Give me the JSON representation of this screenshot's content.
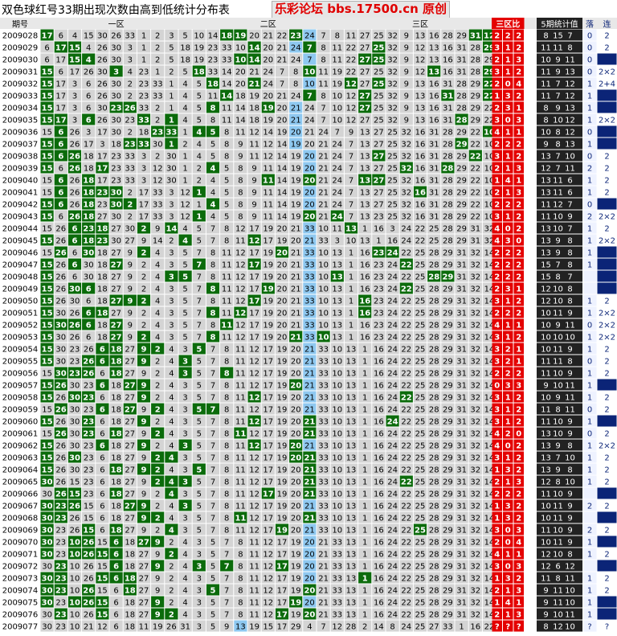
{
  "title": "双色球红号33期出现次数由高到低统计分布表",
  "site": "乐彩论坛 bbs.17500.cn 原创",
  "headers": {
    "issue": "期号",
    "zone1": "一区",
    "zone2": "二区",
    "zone3": "三区",
    "ratio": "三区比",
    "stat5": "5期统计值",
    "drop": "落",
    "consec": "连"
  },
  "colors": {
    "hit": "#0b6b0b",
    "cell_bg": "#d4d4d4",
    "blue": "#0b2477",
    "highlight": "#8ec8f0",
    "ratio_red": "#e40000",
    "ratio_dark": "#222222",
    "grid_line": "#ffffff"
  },
  "chart_data": {
    "type": "table",
    "columns": 33,
    "zones": [
      [
        1,
        11
      ],
      [
        12,
        22
      ],
      [
        23,
        33
      ]
    ],
    "rows": [
      {
        "issue": "2009028",
        "drop": "0",
        "consec": "2"
      },
      {
        "issue": "2009029",
        "drop": "0",
        "consec": "2"
      },
      {
        "issue": "2009030",
        "drop": "0",
        "consec": ""
      },
      {
        "issue": "2009031",
        "drop": "0",
        "consec": "2×2"
      },
      {
        "issue": "2009032",
        "drop": "1",
        "consec": "2+4"
      },
      {
        "issue": "2009033",
        "drop": "1",
        "consec": ""
      },
      {
        "issue": "2009034",
        "drop": "1",
        "consec": ""
      },
      {
        "issue": "2009035",
        "drop": "1",
        "consec": "2×2"
      },
      {
        "issue": "2009036",
        "drop": "0",
        "consec": ""
      },
      {
        "issue": "2009037",
        "drop": "1",
        "consec": ""
      },
      {
        "issue": "2009038",
        "drop": "0",
        "consec": "2"
      },
      {
        "issue": "2009039",
        "drop": "2",
        "consec": "2"
      },
      {
        "issue": "2009040",
        "drop": "1",
        "consec": "2"
      },
      {
        "issue": "2009041",
        "drop": "1",
        "consec": "2"
      },
      {
        "issue": "2009042",
        "drop": "0",
        "consec": ""
      },
      {
        "issue": "2009043",
        "drop": "2",
        "consec": "2×2"
      },
      {
        "issue": "2009044",
        "drop": "1",
        "consec": "2"
      },
      {
        "issue": "2009045",
        "drop": "1",
        "consec": "2×2"
      },
      {
        "issue": "2009046",
        "drop": "1",
        "consec": ""
      },
      {
        "issue": "2009047",
        "drop": "1",
        "consec": ""
      },
      {
        "issue": "2009048",
        "drop": "",
        "consec": ""
      },
      {
        "issue": "2009049",
        "drop": "",
        "consec": ""
      },
      {
        "issue": "2009050",
        "drop": "1",
        "consec": "2"
      },
      {
        "issue": "2009051",
        "drop": "1",
        "consec": "2×2"
      },
      {
        "issue": "2009052",
        "drop": "0",
        "consec": "2×2"
      },
      {
        "issue": "2009053",
        "drop": "1",
        "consec": "2×2"
      },
      {
        "issue": "2009054",
        "drop": "1",
        "consec": "2"
      },
      {
        "issue": "2009055",
        "drop": "0",
        "consec": "2"
      },
      {
        "issue": "2009056",
        "drop": "1",
        "consec": "2"
      },
      {
        "issue": "2009057",
        "drop": "1",
        "consec": ""
      },
      {
        "issue": "2009058",
        "drop": "1",
        "consec": "2"
      },
      {
        "issue": "2009059",
        "drop": "0",
        "consec": "2"
      },
      {
        "issue": "2009060",
        "drop": "1",
        "consec": ""
      },
      {
        "issue": "2009061",
        "drop": "0",
        "consec": "2"
      },
      {
        "issue": "2009062",
        "drop": "1",
        "consec": "2×2"
      },
      {
        "issue": "2009063",
        "drop": "1",
        "consec": "2"
      },
      {
        "issue": "2009064",
        "drop": "1",
        "consec": "2"
      },
      {
        "issue": "2009065",
        "drop": "1",
        "consec": "2"
      },
      {
        "issue": "2009066",
        "drop": "",
        "consec": ""
      },
      {
        "issue": "2009067",
        "drop": "2",
        "consec": "2"
      },
      {
        "issue": "2009068",
        "drop": "",
        "consec": ""
      },
      {
        "issue": "2009069",
        "drop": "2",
        "consec": "2"
      },
      {
        "issue": "2009070",
        "drop": "1",
        "consec": ""
      },
      {
        "issue": "2009071",
        "drop": "1",
        "consec": "2"
      },
      {
        "issue": "2009072",
        "drop": "",
        "consec": ""
      },
      {
        "issue": "2009073",
        "drop": "1",
        "consec": "2"
      },
      {
        "issue": "2009074",
        "drop": "1",
        "consec": "2"
      },
      {
        "issue": "2009075",
        "drop": "1",
        "consec": ""
      },
      {
        "issue": "2009076",
        "drop": "1",
        "consec": ""
      },
      {
        "issue": "2009077",
        "drop": "?",
        "consec": "?"
      }
    ],
    "numbers": [
      "17 6 4 15 30 26 33 1 2 3 5 10 14 18 19 20 21 22 23 24 7 8 11 27 25 32 9 13 16 28 29 31 12",
      "6 17 15 4 26 30 3 1 2 5 18 19 23 33 10 14 20 21 24 7 8 11 22 27 25 32 9 12 13 16 31 28 29",
      "6 17 15 4 26 30 3 1 2 5 18 19 23 33 10 14 20 21 24 7 8 11 22 27 25 32 9 12 13 16 31 28 29",
      "15 6 17 26 30 3 4 23 1 2 5 18 33 14 20 21 24 7 8 10 11 19 22 27 25 32 9 12 13 16 31 28 29",
      "15 17 3 6 26 30 2 23 33 1 4 5 18 14 20 21 24 7 8 10 11 19 12 27 25 32 9 13 16 31 28 29 22",
      "15 17 3 6 26 30 2 23 33 1 4 5 11 14 18 19 20 21 24 7 8 10 12 27 25 32 9 13 16 31 28 29 22",
      "15 17 3 6 30 23 26 33 2 1 4 5 8 11 14 18 19 20 21 24 7 10 12 27 25 32 9 13 16 31 28 29 22",
      "15 17 3 6 26 30 23 33 2 1 4 5 8 11 14 18 19 20 21 24 7 10 12 27 25 32 9 13 16 31 28 29 22",
      "15 6 26 3 17 30 2 18 23 33 1 4 5 8 11 12 14 19 20 21 24 7 9 13 27 25 32 16 31 28 29 22 10",
      "15 6 26 17 3 18 23 33 30 1 2 4 5 8 9 11 12 14 19 20 21 24 7 13 27 25 32 16 31 28 29 22 10",
      "15 6 26 18 17 23 33 3 2 30 1 4 5 8 9 11 12 14 19 20 21 24 7 13 27 25 32 16 31 28 29 22 10",
      "15 6 26 18 17 23 33 3 12 30 1 2 4 5 8 9 11 14 19 20 21 24 7 13 27 25 32 16 31 28 29 22 10",
      "15 6 26 18 17 23 33 3 12 30 1 2 4 5 8 9 11 14 19 20 21 24 7 13 27 25 32 16 31 28 29 22 10",
      "15 6 26 18 23 30 2 17 33 3 12 1 4 5 8 9 11 14 19 20 21 24 7 13 27 25 32 16 31 28 29 22 10",
      "15 6 26 18 23 30 2 17 33 3 12 1 4 5 8 9 11 14 19 20 21 24 7 13 27 25 32 16 31 28 29 22 10",
      "15 6 26 18 27 30 2 17 33 3 12 1 4 5 8 9 11 14 19 20 21 24 7 13 23 25 32 16 31 28 29 22 10",
      "15 26 6 23 18 27 30 2 9 14 4 5 7 8 12 17 19 20 21 33 10 11 13 1 16 3 24 22 25 28 29 31 32",
      "15 26 6 18 23 30 27 9 14 2 4 5 7 8 11 12 17 19 20 21 33 3 10 13 1 16 24 22 25 28 29 31 32",
      "15 26 6 30 18 27 9 2 4 3 5 7 8 11 12 17 19 20 21 33 10 13 1 16 23 24 22 25 28 29 31 32 14",
      "15 26 6 30 18 27 9 2 4 3 5 7 8 11 12 17 19 20 21 33 10 13 1 16 23 24 22 25 28 29 31 32 14",
      "15 26 6 30 18 27 9 2 4 3 5 7 8 11 12 17 19 20 21 33 10 13 1 16 23 24 22 25 28 29 31 32 14",
      "15 26 30 6 18 27 9 2 4 3 5 7 8 11 12 17 19 20 21 33 10 13 1 16 23 24 22 25 28 29 31 32 14",
      "15 26 30 6 18 27 9 2 4 3 5 7 8 11 12 17 19 20 21 33 10 13 1 16 23 24 22 25 28 29 31 32 14",
      "15 30 26 6 18 27 9 2 4 3 5 7 8 11 12 17 19 20 21 33 10 13 1 16 23 24 22 25 28 29 31 32 14",
      "15 30 26 6 18 27 9 2 4 3 5 7 8 11 12 17 19 20 21 33 10 13 1 16 23 24 22 25 28 29 31 32 14",
      "15 30 26 6 18 27 9 2 4 3 5 7 8 11 12 17 19 20 21 33 10 13 1 16 23 24 22 25 28 29 31 32 14",
      "15 30 23 26 6 18 27 9 2 4 3 5 7 8 11 12 17 19 20 21 33 10 13 1 16 24 22 25 28 29 31 32 14",
      "15 30 23 26 6 18 27 9 2 4 3 5 7 8 11 12 17 19 20 21 33 10 13 1 16 24 22 25 28 29 31 32 14",
      "15 30 23 26 6 18 27 9 2 4 3 5 7 8 11 12 17 19 20 21 33 10 13 1 16 24 22 25 28 29 31 32 14",
      "15 26 30 23 6 18 27 9 2 4 3 5 7 8 11 12 17 19 20 21 33 10 13 1 16 24 22 25 28 29 31 32 14",
      "15 26 30 23 6 18 27 9 2 4 3 5 7 8 11 12 17 19 20 21 33 10 13 1 16 24 22 25 28 29 31 32 14",
      "15 26 30 23 6 18 27 9 2 4 3 5 7 8 11 12 17 19 20 21 33 10 13 1 16 24 22 25 28 29 31 32 14",
      "15 26 30 23 6 18 27 9 2 4 3 5 7 8 11 12 17 19 20 21 33 10 13 1 16 24 22 25 28 29 31 32 14",
      "15 26 30 23 6 18 27 9 2 4 3 5 7 8 11 12 17 19 20 21 33 10 13 1 16 24 22 25 28 29 31 32 14",
      "15 26 30 23 6 18 27 9 2 4 3 5 7 8 11 12 17 19 20 21 33 10 13 1 16 24 22 25 28 29 31 32 14",
      "15 26 30 23 6 18 27 9 2 4 3 5 7 8 11 12 17 19 20 21 33 10 13 1 16 24 22 25 28 29 31 32 14",
      "15 26 30 23 6 18 27 9 2 4 3 5 7 8 11 12 17 19 20 21 33 10 13 1 16 24 22 25 28 29 31 32 14",
      "30 26 15 23 6 18 27 9 2 4 3 5 7 8 11 12 17 19 20 21 33 10 13 1 16 24 22 25 28 29 31 32 14",
      "30 26 15 23 6 18 27 9 2 4 3 5 7 8 11 12 17 19 20 21 33 10 13 1 16 24 22 25 28 29 31 32 14",
      "30 23 26 15 6 18 27 9 2 4 3 5 7 8 11 12 17 19 20 21 33 10 13 1 16 24 22 25 28 29 31 32 14",
      "30 23 26 15 6 18 27 9 2 4 3 5 7 8 11 12 17 19 20 21 33 10 13 1 16 24 22 25 28 29 31 32 14",
      "30 23 26 15 6 18 27 9 2 4 3 5 7 8 11 12 17 19 20 21 33 10 13 1 16 24 22 25 28 29 31 32 14",
      "30 23 10 26 15 6 18 27 9 2 4 3 5 7 8 11 12 17 19 20 21 33 13 1 16 24 22 25 28 29 31 32 14",
      "30 23 10 26 15 6 18 27 9 2 4 3 5 7 8 11 12 17 19 20 21 33 13 1 16 24 22 25 28 29 31 32 14",
      "30 23 10 26 15 6 18 27 9 2 4 3 5 7 8 11 12 17 19 20 21 33 13 1 16 24 22 25 28 29 31 32 14",
      "30 23 10 26 15 6 18 27 9 2 4 3 5 7 8 11 12 17 19 20 21 33 13 1 16 24 22 25 28 29 31 32 14",
      "30 23 10 26 15 6 18 27 9 2 4 3 5 7 8 11 12 17 19 20 21 33 13 1 16 24 22 25 28 29 31 32 14",
      "30 23 10 26 15 6 18 27 9 2 4 3 5 7 8 11 12 17 19 20 21 33 13 1 16 24 22 25 28 29 31 32 14",
      "30 23 10 26 15 6 18 27 9 2 4 3 5 7 8 11 12 17 19 20 21 33 13 1 16 24 22 25 28 29 31 32 14",
      "30 23 10 21 12 6 18 11 19 26 31 3 5 9 13 19 15 17 29 4 7 12 28 2 14 8 24 25 27 33 1 16 22"
    ],
    "hits": [
      "1 14 15 19 32 33",
      "2 3 16 20 25 33",
      "3 4 15 16 24 25",
      "1 6 12 20 29 33",
      "1 13 16 23 25 33",
      "1 14 20 24 30 33",
      "1 6 7 13 17 24",
      "1 2 4 8 10 31",
      "2 9 10 12 13 33",
      "1 2 7 8 10 31",
      "1 2 3 25 32",
      "1 3 5 13 27 30",
      "2 4 17 20 24 25",
      "2 4 5 6 12 28",
      "1 2 4 6 7 13",
      "1 3 4 12 20 22",
      "3 4 5 8 10 23",
      "1 3 4 5 11 16",
      "2 4 8 18 25 26",
      "1 3 6 12 16 27",
      "1 10 11 22 29 30",
      "1 3 4 13 17 27",
      "1 6 7 8 16 24",
      "1 4 5 13 15 24",
      "1 2 3 4 6 14",
      "1 6 8 13 19 21",
      "1 5 6 8 9 12",
      "1 4 5 6 8 11",
      "2 3 4 6 11 14",
      "1 2 5 7 8 19",
      "1 3 4 8 16 27",
      "2 5 7 9 12 13",
      "1 4 8 16 20 26",
      "2 4 6 9 15 20",
      "1 5 8 11 16 19",
      "1 3 9 10 19 20",
      "1 6 8 9 12 20",
      "1 9 10 11 20 27",
      "2 3 6 10 17 20",
      "1 2 3 7 8 11",
      "1 2 8 9 15 20",
      "1 4 6 10 18 28",
      "1 3 4 6 8 9",
      "1 3 4 5 6 10",
      "2 6 9 12 14 18",
      "1 2 5 6 7 24",
      "1 2 4 7 13 20",
      "1 3 4 5 9 19",
      "2 5 9 10 18 20",
      ""
    ],
    "highlight": [
      "20",
      "19",
      "20",
      "20",
      "20",
      "20",
      "19",
      "19",
      "19",
      "19",
      "20",
      "20",
      "20",
      "20",
      "20",
      "20",
      "20",
      "20",
      "20",
      "20",
      "20",
      "20",
      "20",
      "20",
      "20",
      "20",
      "20",
      "20",
      "20",
      "20",
      "20",
      "20",
      "20",
      "20",
      "20",
      "20",
      "20",
      "20",
      "20",
      "20",
      "20",
      "20",
      "20",
      "20",
      "20",
      "20",
      "20",
      "20",
      "20",
      "15"
    ],
    "zone_ratio": [
      "2 2 2",
      "3 1 2",
      "2 1 3",
      "3 1 2",
      "2 0 4",
      "1 3 2",
      "2 3 1",
      "3 0 3",
      "4 1 1",
      "2 2 2",
      "3 1 2",
      "2 1 3",
      "1 4 1",
      "2 1 3",
      "2 2 2",
      "3 1 2",
      "4 0 2",
      "4 3 0",
      "2 2 2",
      "2 2 2",
      "2 2 2",
      "2 3 1",
      "3 1 2",
      "2 2 2",
      "4 1 1",
      "3 1 2",
      "3 2 1",
      "3 2 1",
      "2 2 2",
      "0 3 3",
      "3 1 2",
      "3 1 2",
      "3 1 2",
      "4 2 0",
      "4 0 2",
      "3 1 2",
      "1 3 2",
      "2 1 3",
      "2 2 2",
      "1 3 2",
      "1 3 2",
      "3 0 3",
      "2 0 4",
      "4 1 1",
      "3 0 3",
      "1 3 2",
      "2 1 3",
      "1 4 1",
      "2 1 3",
      "? ? ?"
    ],
    "stat5": [
      "8 15 7",
      "11 11 8",
      "10 9 11",
      "11 9 13",
      "11 7 12",
      "11 7 12",
      "8 9 13",
      "8 10 12",
      "10 8 12",
      "9 8 13",
      "13 7 10",
      "12 7 11",
      "13 11 6",
      "13 11 6",
      "11 12 7",
      "11 10 9",
      "13 10 7",
      "13 9 8",
      "13 9 8",
      "15 7 8",
      "15 8 7",
      "12 10 8",
      "12 10 8",
      "10 11 9",
      "10 9 11",
      "10 10 10",
      "10 11 9",
      "11 11 8",
      "11 10 9",
      "9 10 11",
      "10 9 11",
      "11 8 11",
      "11 10 9",
      "13 10 9",
      "13 9 8",
      "13 7 10",
      "13 9 8",
      "12 8 10",
      "11 10 9",
      "10 11 9",
      "10 11 9",
      "11 10 9",
      "10 11 9",
      "12 10 8",
      "12 6 12",
      "11 8 11",
      "9 11 10",
      "9 11 10",
      "9 10 11",
      "8 12 10"
    ]
  }
}
